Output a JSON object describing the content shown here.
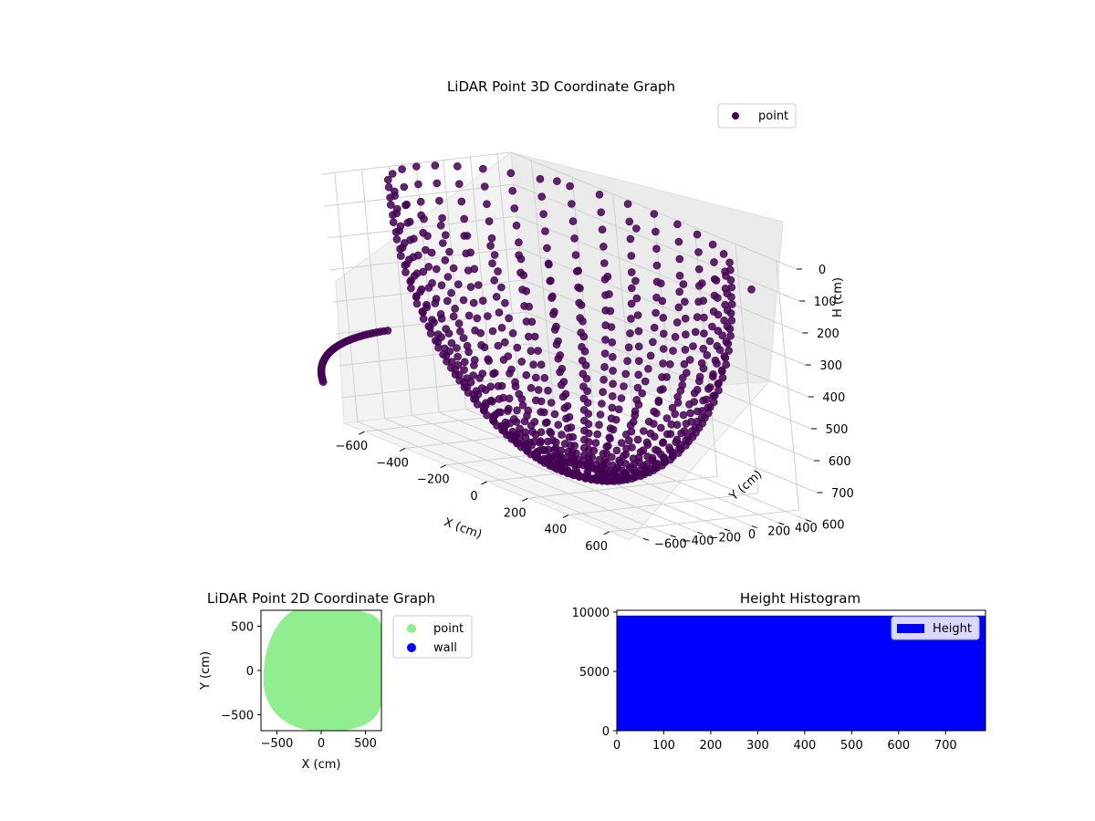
{
  "chart_data": [
    {
      "type": "scatter3d",
      "title": "LiDAR Point 3D Coordinate Graph",
      "xlabel": "X (cm)",
      "ylabel": "Y (cm)",
      "zlabel": "H (cm)",
      "xlim": [
        -700,
        700
      ],
      "ylim": [
        -700,
        700
      ],
      "zlim": [
        0,
        780
      ],
      "z_inverted": true,
      "x_ticks": [
        -600,
        -400,
        -200,
        0,
        200,
        400,
        600
      ],
      "y_ticks": [
        -600,
        -400,
        -200,
        0,
        200,
        400,
        600
      ],
      "z_ticks": [
        0,
        100,
        200,
        300,
        400,
        500,
        600,
        700
      ],
      "grid": true,
      "legend": {
        "placement": "top-right",
        "entries": [
          "point"
        ]
      },
      "series": [
        {
          "name": "point",
          "color": "#440154",
          "description_of_shape": "bowl of vertical scan arcs around the origin",
          "radius_range": [
            100,
            700
          ],
          "height_range": [
            0,
            780
          ],
          "outliers": [
            {
              "x": 600,
              "y": -300,
              "h": -150
            },
            {
              "x": -200,
              "y": 300,
              "h": -60
            },
            {
              "x": 600,
              "y": 500,
              "h": 80
            }
          ]
        }
      ]
    },
    {
      "type": "scatter",
      "title": "LiDAR Point 2D Coordinate Graph",
      "xlabel": "X (cm)",
      "ylabel": "Y (cm)",
      "xlim": [
        -680,
        680
      ],
      "ylim": [
        -680,
        680
      ],
      "x_ticks": [
        -500,
        0,
        500
      ],
      "y_ticks": [
        -500,
        0,
        500
      ],
      "legend": {
        "placement": "outside-right",
        "entries": [
          "point",
          "wall"
        ]
      },
      "series": [
        {
          "name": "point",
          "color": "#90ee90",
          "shape": "filled disc",
          "center": [
            0,
            0
          ],
          "radius": 700
        },
        {
          "name": "wall",
          "color": "#0000ff",
          "points": []
        }
      ]
    },
    {
      "type": "bar",
      "title": "Height Histogram",
      "xlim": [
        0,
        785
      ],
      "ylim": [
        0,
        10150
      ],
      "x_ticks": [
        0,
        100,
        200,
        300,
        400,
        500,
        600,
        700
      ],
      "y_ticks": [
        0,
        5000,
        10000
      ],
      "legend": {
        "placement": "top-right",
        "entries": [
          "Height"
        ]
      },
      "series": [
        {
          "name": "Height",
          "color": "#0000ff",
          "bins": {
            "start": 0,
            "end": 785,
            "count": 1,
            "values": [
              9700
            ]
          }
        }
      ]
    }
  ]
}
